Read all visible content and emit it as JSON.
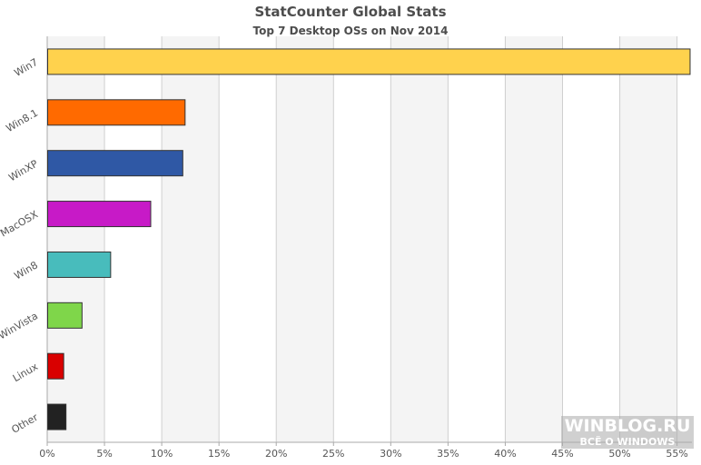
{
  "chart_data": {
    "type": "bar",
    "orientation": "horizontal",
    "title": "StatCounter Global Stats",
    "subtitle": "Top 7 Desktop OSs on Nov 2014",
    "categories": [
      "Win7",
      "Win8.1",
      "WinXP",
      "MacOSX",
      "Win8",
      "WinVista",
      "Linux",
      "Other"
    ],
    "values": [
      56.1,
      12.0,
      11.8,
      9.0,
      5.5,
      3.0,
      1.4,
      1.6
    ],
    "colors": [
      "#ffd24d",
      "#ff6a00",
      "#2f58a5",
      "#c71ac7",
      "#48bcbc",
      "#7fd64a",
      "#d90000",
      "#222222"
    ],
    "x_ticks": [
      "0%",
      "5%",
      "10%",
      "15%",
      "20%",
      "25%",
      "30%",
      "35%",
      "40%",
      "45%",
      "50%",
      "55%"
    ],
    "xlim": [
      0,
      56.3
    ],
    "grid": true
  },
  "watermark": {
    "line1": "WINBLOG.RU",
    "line2": "ВСЁ О WINDOWS"
  }
}
